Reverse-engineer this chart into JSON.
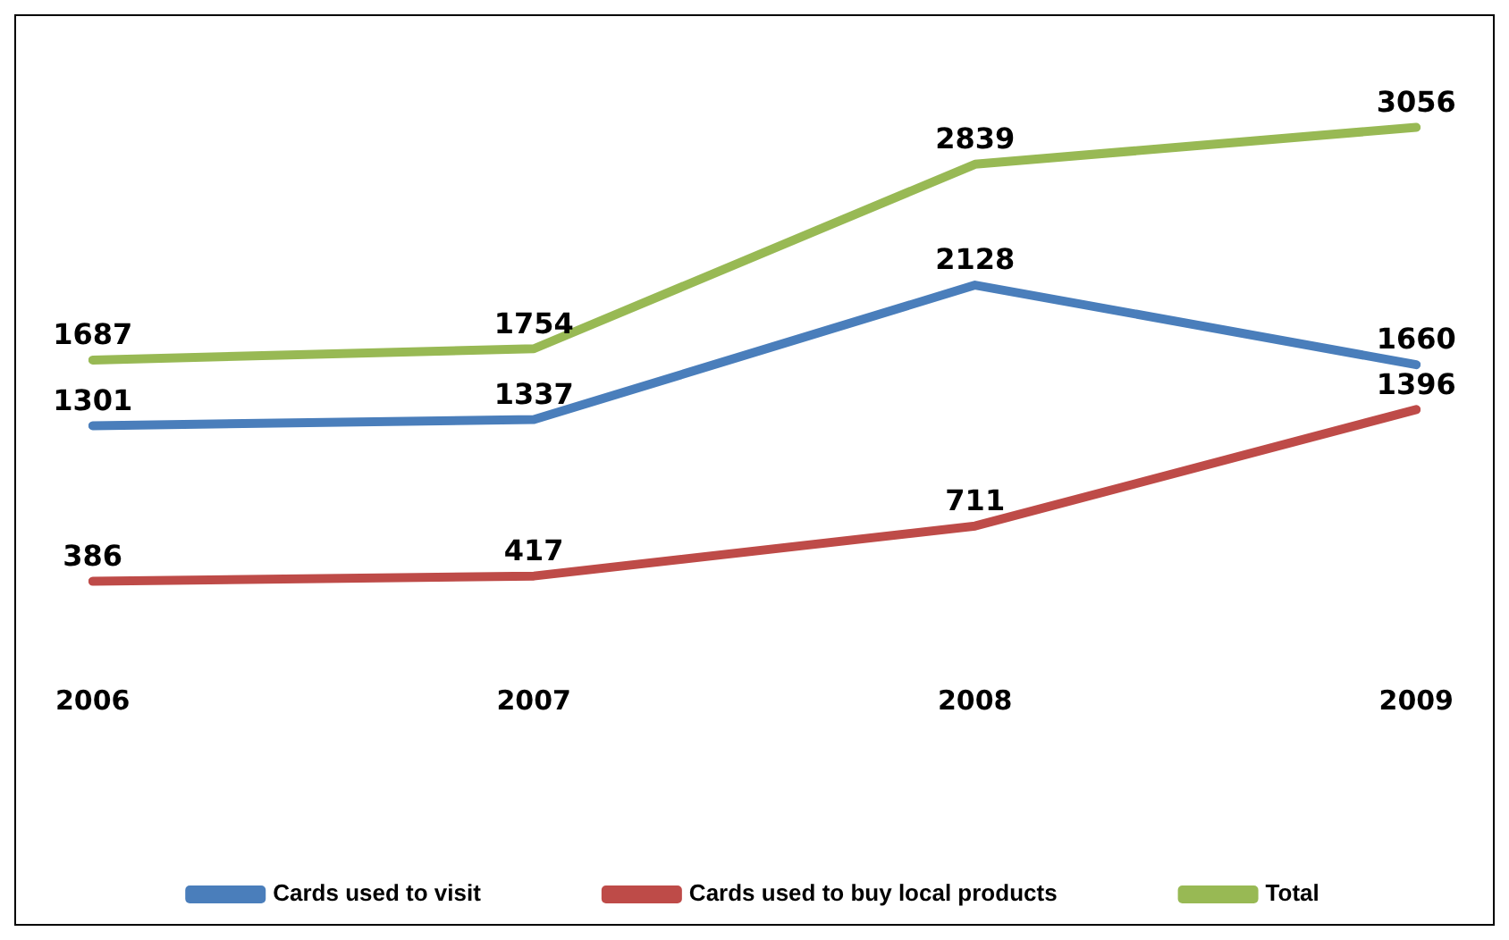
{
  "chart_data": {
    "type": "line",
    "categories": [
      "2006",
      "2007",
      "2008",
      "2009"
    ],
    "series": [
      {
        "name": "Cards used to visit",
        "color": "#4a7ebb",
        "values": [
          1301,
          1337,
          2128,
          1660
        ]
      },
      {
        "name": "Cards used to buy local products",
        "color": "#be4b48",
        "values": [
          386,
          417,
          711,
          1396
        ]
      },
      {
        "name": "Total",
        "color": "#98b954",
        "values": [
          1687,
          1754,
          2839,
          3056
        ]
      }
    ],
    "data_labels": true,
    "legend": "bottom",
    "tick_labels": "x",
    "grid": false,
    "marker": "none",
    "line_style": "solid"
  }
}
